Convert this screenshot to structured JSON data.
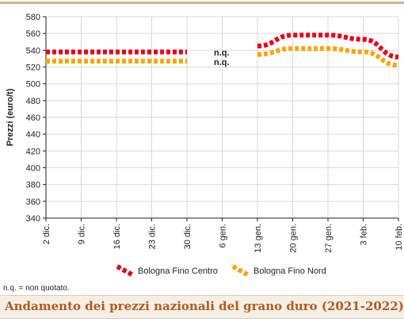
{
  "chart_data": {
    "type": "line",
    "title": "Andamento dei prezzi nazionali del grano duro (2021-2022)",
    "ylabel": "Prezzi (euro/t)",
    "xlabel": "",
    "ylim": [
      340,
      580
    ],
    "yticks": [
      340,
      360,
      380,
      400,
      420,
      440,
      460,
      480,
      500,
      520,
      540,
      560,
      580
    ],
    "categories": [
      "2 dic.",
      "9 dic.",
      "16 dic.",
      "23 dic.",
      "30 dic.",
      "6 gen.",
      "13 gen.",
      "20 gen.",
      "27 gen.",
      "3 feb.",
      "10 feb."
    ],
    "grid": true,
    "legend_position": "bottom",
    "annotations": [
      "n.q.",
      "n.q."
    ],
    "series": [
      {
        "name": "Bologna Fino Centro",
        "color": "#e2001a",
        "values": [
          538,
          538,
          538,
          538,
          538,
          null,
          545,
          558,
          558,
          553,
          532
        ]
      },
      {
        "name": "Bologna Fino Nord",
        "color": "#f7a600",
        "values": [
          527,
          527,
          527,
          527,
          527,
          null,
          535,
          542,
          542,
          538,
          522
        ]
      }
    ],
    "footnote": "n.q. = non quotato."
  }
}
